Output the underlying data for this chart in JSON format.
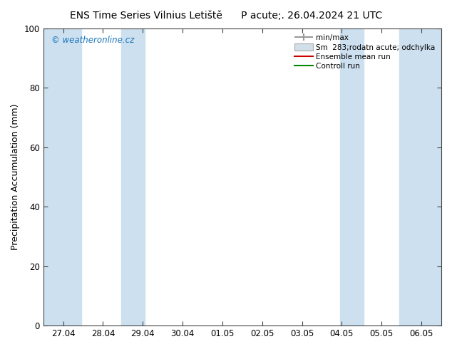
{
  "title_left": "ENS Time Series Vilnius Letiště",
  "title_right": "P acute;. 26.04.2024 21 UTC",
  "ylabel": "Precipitation Accumulation (mm)",
  "ylim": [
    0,
    100
  ],
  "yticks": [
    0,
    20,
    40,
    60,
    80,
    100
  ],
  "x_labels": [
    "27.04",
    "28.04",
    "29.04",
    "30.04",
    "01.05",
    "02.05",
    "03.05",
    "04.05",
    "05.05",
    "06.05"
  ],
  "x_positions": [
    0,
    1,
    2,
    3,
    4,
    5,
    6,
    7,
    8,
    9
  ],
  "xlim": [
    -0.5,
    9.5
  ],
  "shaded_bands": [
    [
      -0.5,
      0.5
    ],
    [
      1.5,
      2.0
    ],
    [
      7.0,
      7.6
    ],
    [
      8.5,
      9.0
    ],
    [
      9.5,
      9.5
    ]
  ],
  "band_color": "#cce0f0",
  "background_color": "#ffffff",
  "plot_bg_color": "#ffffff",
  "watermark": "© weatheronline.cz",
  "watermark_color": "#1a75bb",
  "legend_labels": [
    "min/max",
    "Sm  283;rodatn acute; odchylka",
    "Ensemble mean run",
    "Controll run"
  ],
  "minmax_color": "#999999",
  "sm_facecolor": "#d0dfe8",
  "sm_edgecolor": "#aaaaaa",
  "ensemble_color": "#cc0000",
  "control_color": "#008800",
  "title_fontsize": 10,
  "axis_fontsize": 9,
  "tick_fontsize": 8.5
}
